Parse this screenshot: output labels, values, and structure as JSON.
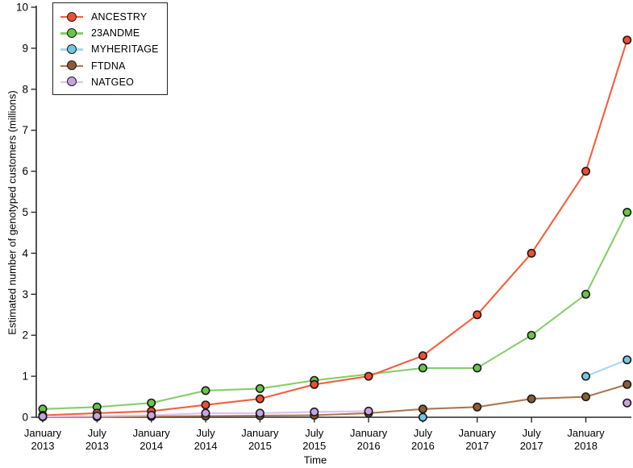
{
  "chart_data": {
    "type": "line",
    "title": "",
    "xlabel": "Time",
    "ylabel": "Estimated number of genotyped customers (millions)",
    "ylim": [
      0,
      10
    ],
    "xlim": [
      2013.0,
      2018.45
    ],
    "grid": false,
    "legend_position": "top-left",
    "y_ticks": [
      0,
      1,
      2,
      3,
      4,
      5,
      6,
      7,
      8,
      9,
      10
    ],
    "x_ticks": [
      {
        "value": 2013.0,
        "month": "January",
        "year": "2013"
      },
      {
        "value": 2013.5,
        "month": "July",
        "year": "2013"
      },
      {
        "value": 2014.0,
        "month": "January",
        "year": "2014"
      },
      {
        "value": 2014.5,
        "month": "July",
        "year": "2014"
      },
      {
        "value": 2015.0,
        "month": "January",
        "year": "2015"
      },
      {
        "value": 2015.5,
        "month": "July",
        "year": "2015"
      },
      {
        "value": 2016.0,
        "month": "January",
        "year": "2016"
      },
      {
        "value": 2016.5,
        "month": "July",
        "year": "2016"
      },
      {
        "value": 2017.0,
        "month": "January",
        "year": "2017"
      },
      {
        "value": 2017.5,
        "month": "July",
        "year": "2017"
      },
      {
        "value": 2018.0,
        "month": "January",
        "year": "2018"
      }
    ],
    "x": [
      2013.0,
      2013.5,
      2014.0,
      2014.5,
      2015.0,
      2015.5,
      2016.0,
      2016.5,
      2017.0,
      2017.5,
      2018.0,
      2018.38
    ],
    "series": [
      {
        "name": "ANCESTRY",
        "marker_color": "#ee4f33",
        "line_color": "#f4603e",
        "values": [
          0.05,
          0.1,
          0.15,
          0.3,
          0.45,
          0.8,
          1.0,
          1.5,
          2.5,
          4.0,
          6.0,
          9.2
        ],
        "segments": [
          [
            0,
            1,
            2,
            3,
            4,
            5,
            6,
            7,
            8,
            9,
            10,
            11
          ]
        ]
      },
      {
        "name": "23ANDME",
        "marker_color": "#68c549",
        "line_color": "#86ce6b",
        "values": [
          0.2,
          0.25,
          0.35,
          0.65,
          0.7,
          0.9,
          null,
          1.2,
          1.2,
          2.0,
          3.0,
          5.0
        ],
        "segments": [
          [
            0,
            1,
            2,
            3,
            4,
            5,
            7,
            8,
            9,
            10,
            11
          ]
        ]
      },
      {
        "name": "MYHERITAGE",
        "marker_color": "#74c7e0",
        "line_color": "#a5daec",
        "values": [
          null,
          null,
          null,
          null,
          null,
          null,
          null,
          0.0,
          null,
          null,
          1.0,
          1.4
        ],
        "segments": [
          [
            10,
            11
          ]
        ]
      },
      {
        "name": "FTDNA",
        "marker_color": "#8a5d33",
        "line_color": "#aa7851",
        "values": [
          0.01,
          0.01,
          0.02,
          0.03,
          0.04,
          0.05,
          0.1,
          0.2,
          0.25,
          0.45,
          0.5,
          0.8
        ],
        "segments": [
          [
            0,
            1,
            2,
            3,
            4,
            5,
            6,
            7,
            8,
            9,
            10,
            11
          ]
        ]
      },
      {
        "name": "NATGEO",
        "marker_color": "#c9a2e0",
        "line_color": "#dcc2ec",
        "values": [
          0.02,
          0.03,
          0.05,
          0.1,
          0.1,
          0.13,
          0.15,
          null,
          null,
          null,
          null,
          0.35
        ],
        "segments": [
          [
            0,
            1,
            2,
            3,
            4,
            5,
            6
          ]
        ]
      }
    ],
    "marker_outline": "#1a1a1a",
    "axis_color": "#2a2a2a",
    "draw_order": [
      1,
      0,
      3,
      2,
      4
    ]
  }
}
